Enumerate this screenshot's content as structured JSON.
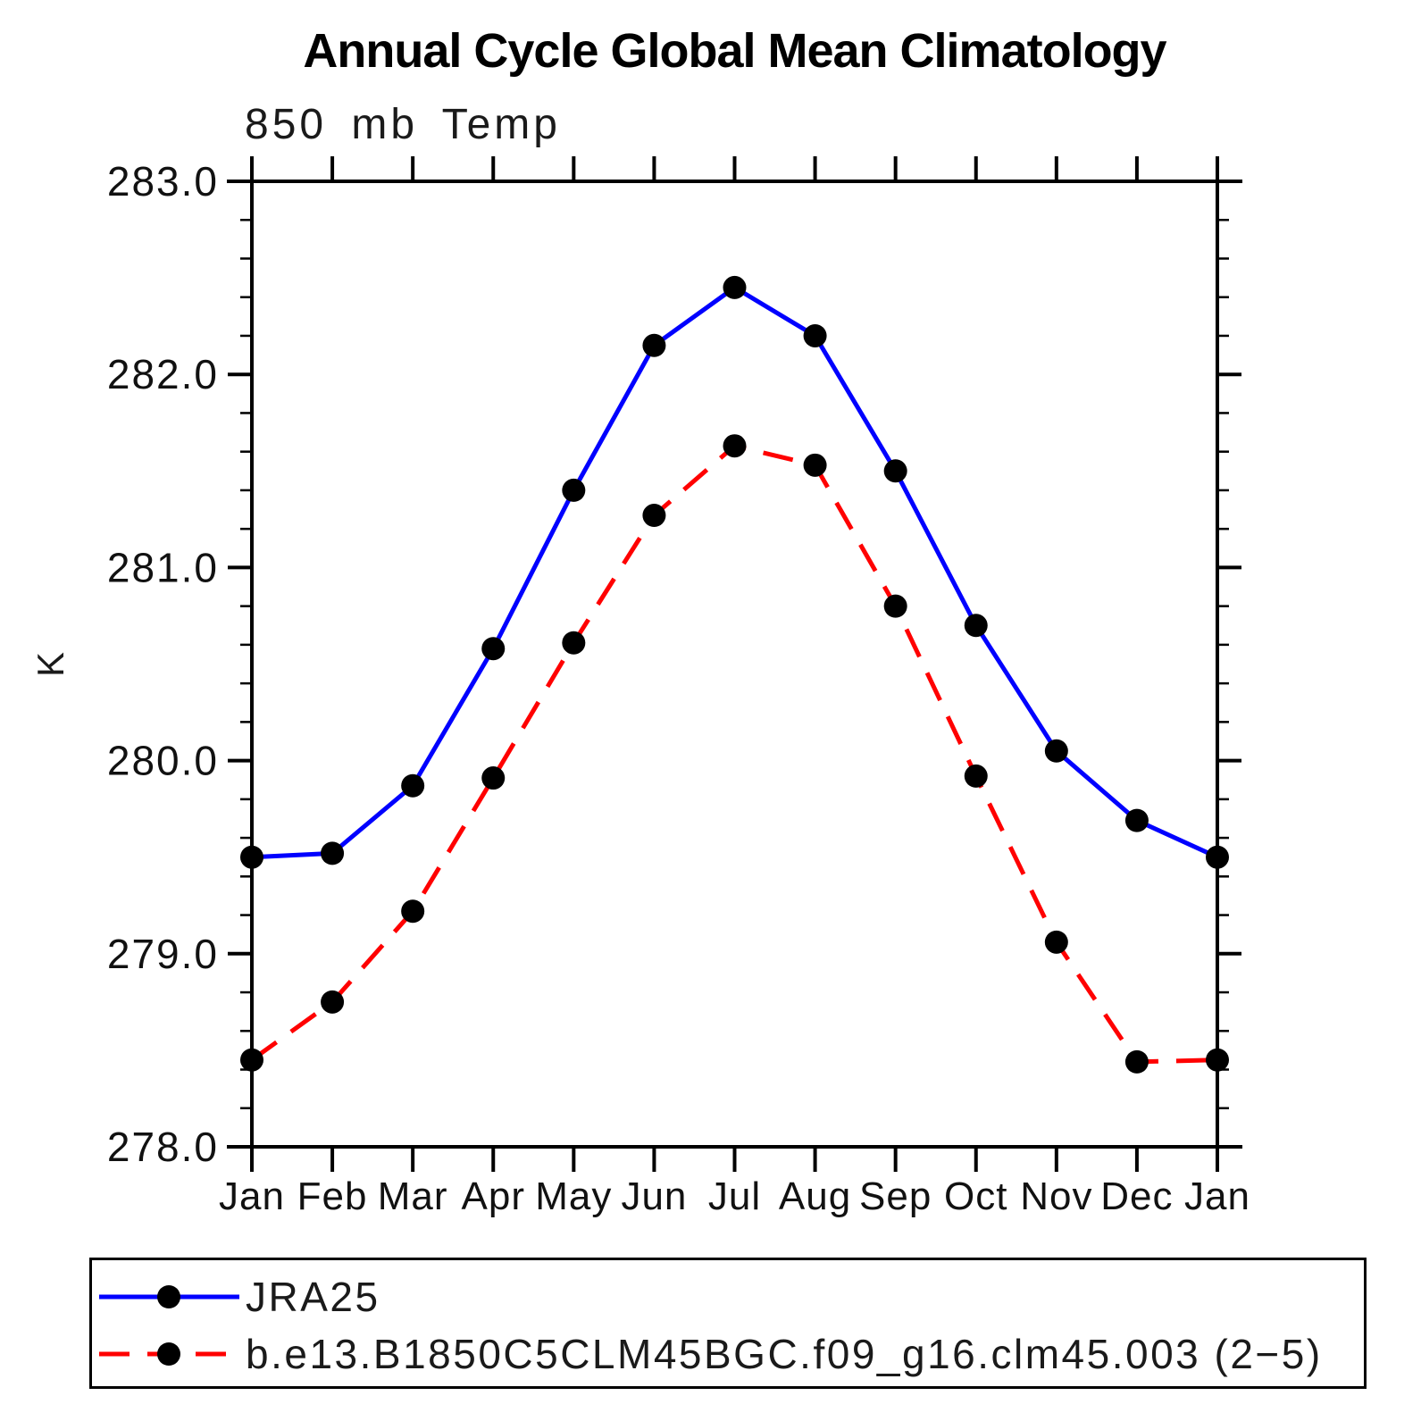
{
  "chart_data": {
    "type": "line",
    "title": "Annual Cycle Global Mean Climatology",
    "subtitle": "850 mb Temp",
    "ylabel": "K",
    "xlabel": "",
    "x_tick_labels": [
      "Jan",
      "Feb",
      "Mar",
      "Apr",
      "May",
      "Jun",
      "Jul",
      "Aug",
      "Sep",
      "Oct",
      "Nov",
      "Dec",
      "Jan"
    ],
    "ylim": [
      278.0,
      283.0
    ],
    "y_tick_labels": [
      "283.0",
      "282.0",
      "281.0",
      "280.0",
      "279.0",
      "278.0"
    ],
    "y_major_ticks": [
      283.0,
      282.0,
      281.0,
      280.0,
      279.0,
      278.0
    ],
    "y_minor_step": 0.2,
    "grid": false,
    "legend_position": "bottom",
    "axis_color": "#000000",
    "series": [
      {
        "name": "JRA25",
        "color": "#0000ff",
        "line_style": "solid",
        "marker": "circle",
        "marker_color": "#000000",
        "values": [
          279.5,
          279.52,
          279.87,
          280.58,
          281.4,
          282.15,
          282.45,
          282.2,
          281.5,
          280.7,
          280.05,
          279.69,
          279.5
        ]
      },
      {
        "name": "b.e13.B1850C5CLM45BGC.f09_g16.clm45.003 (2−5)",
        "color": "#ff0000",
        "line_style": "dashed",
        "marker": "circle",
        "marker_color": "#000000",
        "values": [
          278.45,
          278.75,
          279.22,
          279.91,
          280.61,
          281.27,
          281.63,
          281.53,
          280.8,
          279.92,
          279.06,
          278.44,
          278.45
        ]
      }
    ]
  }
}
